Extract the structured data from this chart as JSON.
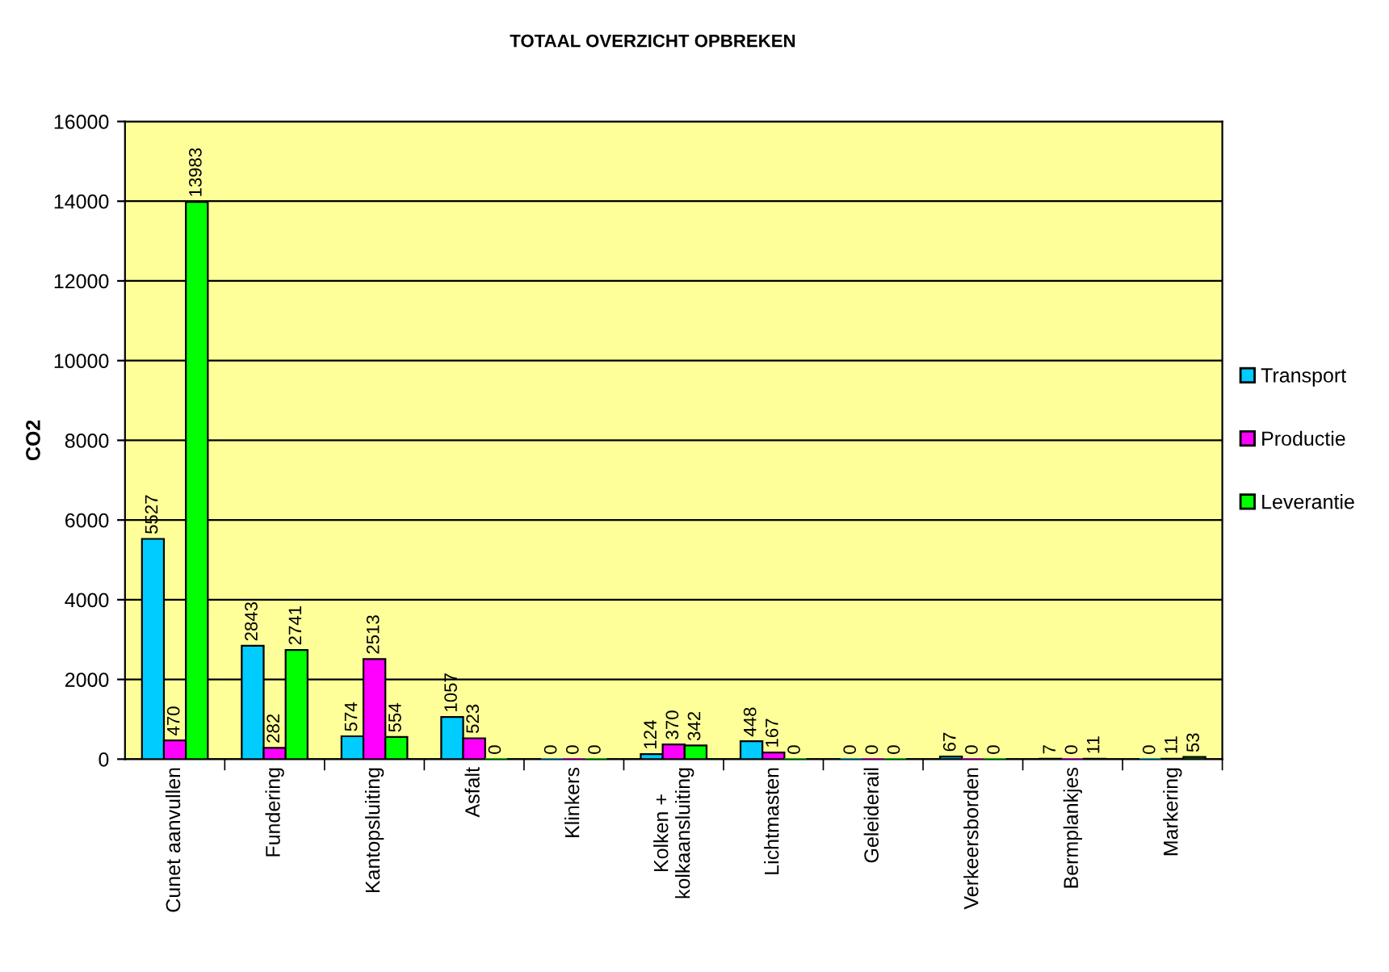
{
  "chart_data": {
    "type": "bar",
    "title": "TOTAAL OVERZICHT OPBREKEN",
    "ylabel": "CO2",
    "categories": [
      "Cunet aanvullen",
      "Fundering",
      "Kantopsluiting",
      "Asfalt",
      "Klinkers",
      "Kolken +\nkolkaansluiting",
      "Lichtmasten",
      "Geleiderail",
      "Verkeersborden",
      "Bermplankjes",
      "Markering"
    ],
    "series": [
      {
        "name": "Transport",
        "color": "#00ccff",
        "values": [
          5527,
          2843,
          574,
          1057,
          0,
          124,
          448,
          0,
          67,
          7,
          0
        ]
      },
      {
        "name": "Productie",
        "color": "#ff00ff",
        "values": [
          470,
          282,
          2513,
          523,
          0,
          370,
          167,
          0,
          0,
          0,
          11
        ]
      },
      {
        "name": "Leverantie",
        "color": "#00ff00",
        "values": [
          13983,
          2741,
          554,
          0,
          0,
          342,
          0,
          0,
          0,
          11,
          53
        ]
      }
    ],
    "ylim": [
      0,
      16000
    ],
    "yticks": [
      0,
      2000,
      4000,
      6000,
      8000,
      10000,
      12000,
      14000,
      16000
    ],
    "grid": "y",
    "legend": "right",
    "data_labels": true
  }
}
